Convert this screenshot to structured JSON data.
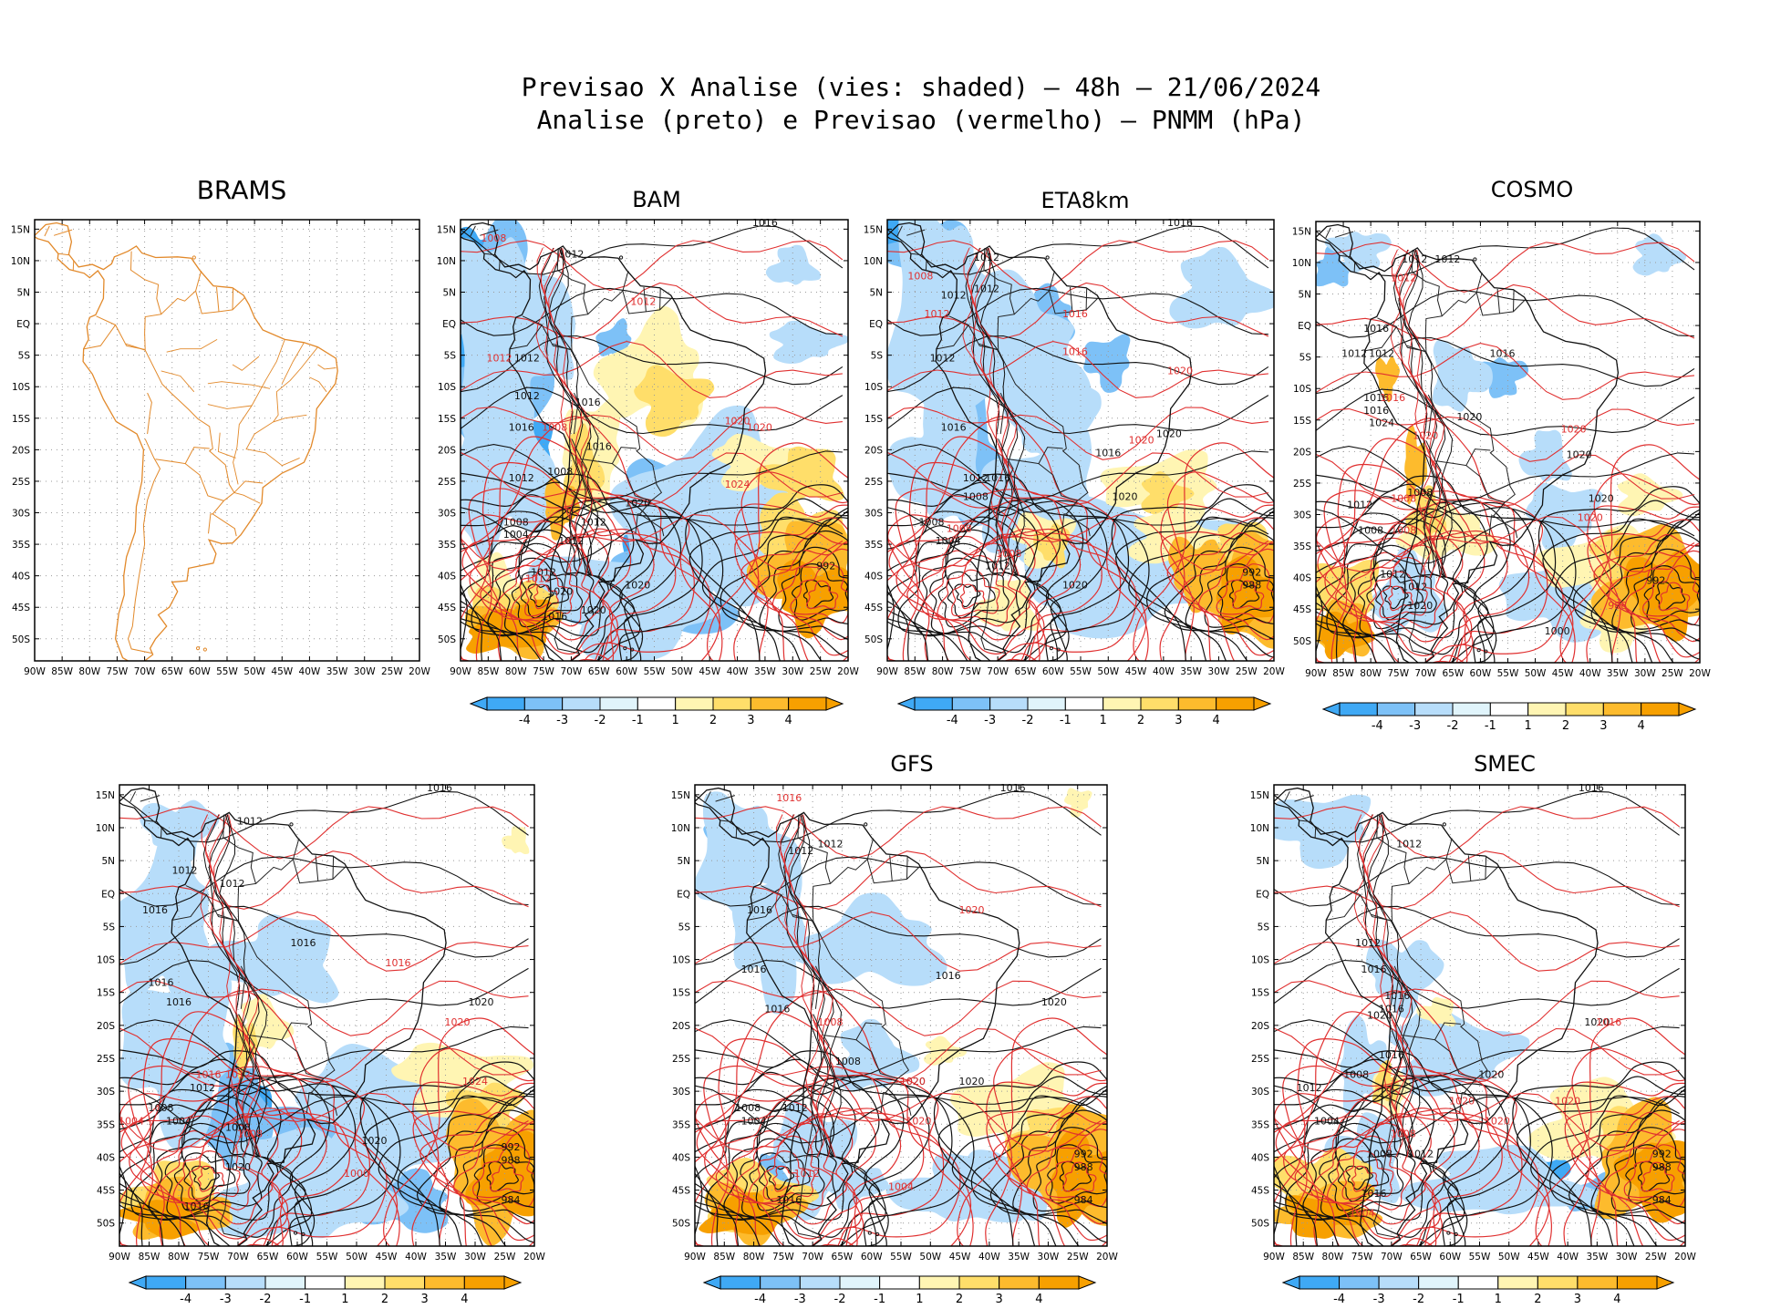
{
  "title": {
    "line1": "Previsao X Analise (vies: shaded) – 48h – 21/06/2024",
    "line2": "Analise (preto) e Previsao (vermelho) – PNMM (hPa)"
  },
  "panels": [
    {
      "id": "brams",
      "title": "BRAMS",
      "shaded": false,
      "colorbar": false
    },
    {
      "id": "bam",
      "title": "BAM",
      "shaded": true,
      "colorbar": true
    },
    {
      "id": "eta8km",
      "title": "ETA8km",
      "shaded": true,
      "colorbar": true
    },
    {
      "id": "cosmo",
      "title": "COSMO",
      "shaded": true,
      "colorbar": true
    },
    {
      "id": "panel5",
      "title": "",
      "shaded": true,
      "colorbar": true
    },
    {
      "id": "gfs",
      "title": "GFS",
      "shaded": true,
      "colorbar": true
    },
    {
      "id": "smec",
      "title": "SMEC",
      "shaded": true,
      "colorbar": true
    }
  ],
  "axes": {
    "lat_labels": [
      "15N",
      "10N",
      "5N",
      "EQ",
      "5S",
      "10S",
      "15S",
      "20S",
      "25S",
      "30S",
      "35S",
      "40S",
      "45S",
      "50S"
    ],
    "lon_labels": [
      "90W",
      "85W",
      "80W",
      "75W",
      "70W",
      "65W",
      "60W",
      "55W",
      "50W",
      "45W",
      "40W",
      "35W",
      "30W",
      "25W",
      "20W"
    ]
  },
  "colorbar": {
    "labels": [
      "-4",
      "-3",
      "-2",
      "-1",
      "1",
      "2",
      "3",
      "4"
    ],
    "colors": [
      "#3fa9f5",
      "#7dc1f7",
      "#b7ddfa",
      "#e0f4fb",
      "#ffffff",
      "#fff5b3",
      "#ffde6a",
      "#fdbb2d",
      "#f7a000"
    ]
  },
  "isobars": {
    "bam": {
      "analysis": [
        "1016",
        "1012",
        "1012",
        "1012",
        "1016",
        "1016",
        "1012",
        "1008",
        "1004",
        "1012",
        "1012",
        "1020",
        "1020",
        "1020",
        "1016",
        "1020",
        "992",
        "1012",
        "1016",
        "1008"
      ],
      "forecast": [
        "1008",
        "1012",
        "1012",
        "1020",
        "1024",
        "1020",
        "1008",
        "1012"
      ]
    },
    "eta8km": {
      "analysis": [
        "1016",
        "1012",
        "1012",
        "1012",
        "1012",
        "1016",
        "1016",
        "1012",
        "1008",
        "1008",
        "1004",
        "1012",
        "1020",
        "1020",
        "1020",
        "1016",
        "992",
        "988"
      ],
      "forecast": [
        "1008",
        "1012",
        "1016",
        "1016",
        "1020",
        "1020",
        "1008",
        "1008"
      ]
    },
    "cosmo": {
      "analysis": [
        "1012",
        "1012",
        "1016",
        "1012",
        "1012",
        "1016",
        "1016",
        "1024",
        "1020",
        "1016",
        "1008",
        "1012",
        "1020",
        "1020",
        "1012",
        "1008",
        "1012",
        "1020",
        "992",
        "1000"
      ],
      "forecast": [
        "1012",
        "1016",
        "1020",
        "1020",
        "1020",
        "1008",
        "1008",
        "988"
      ]
    },
    "panel5": {
      "analysis": [
        "1016",
        "1012",
        "1012",
        "1012",
        "1016",
        "1016",
        "1016",
        "1016",
        "1020",
        "1012",
        "1008",
        "1004",
        "1020",
        "1020",
        "1016",
        "1008",
        "992",
        "988",
        "984"
      ],
      "forecast": [
        "1016",
        "1020",
        "1024",
        "1016",
        "1012",
        "1000",
        "1008",
        "1004"
      ]
    },
    "gfs": {
      "analysis": [
        "1016",
        "1012",
        "1012",
        "1016",
        "1016",
        "1016",
        "1020",
        "1016",
        "1012",
        "1008",
        "1004",
        "1008",
        "1020",
        "1020",
        "1016",
        "992",
        "988",
        "984"
      ],
      "forecast": [
        "1016",
        "1020",
        "1020",
        "1020",
        "1008",
        "1004",
        "1012"
      ]
    },
    "smec": {
      "analysis": [
        "1016",
        "1012",
        "1012",
        "1016",
        "1016",
        "1016",
        "1020",
        "1020",
        "1016",
        "1012",
        "1008",
        "1004",
        "1020",
        "1012",
        "1008",
        "1016",
        "992",
        "988",
        "984"
      ],
      "forecast": [
        "1016",
        "1020",
        "1020",
        "1020",
        "1008",
        "1004"
      ]
    }
  }
}
